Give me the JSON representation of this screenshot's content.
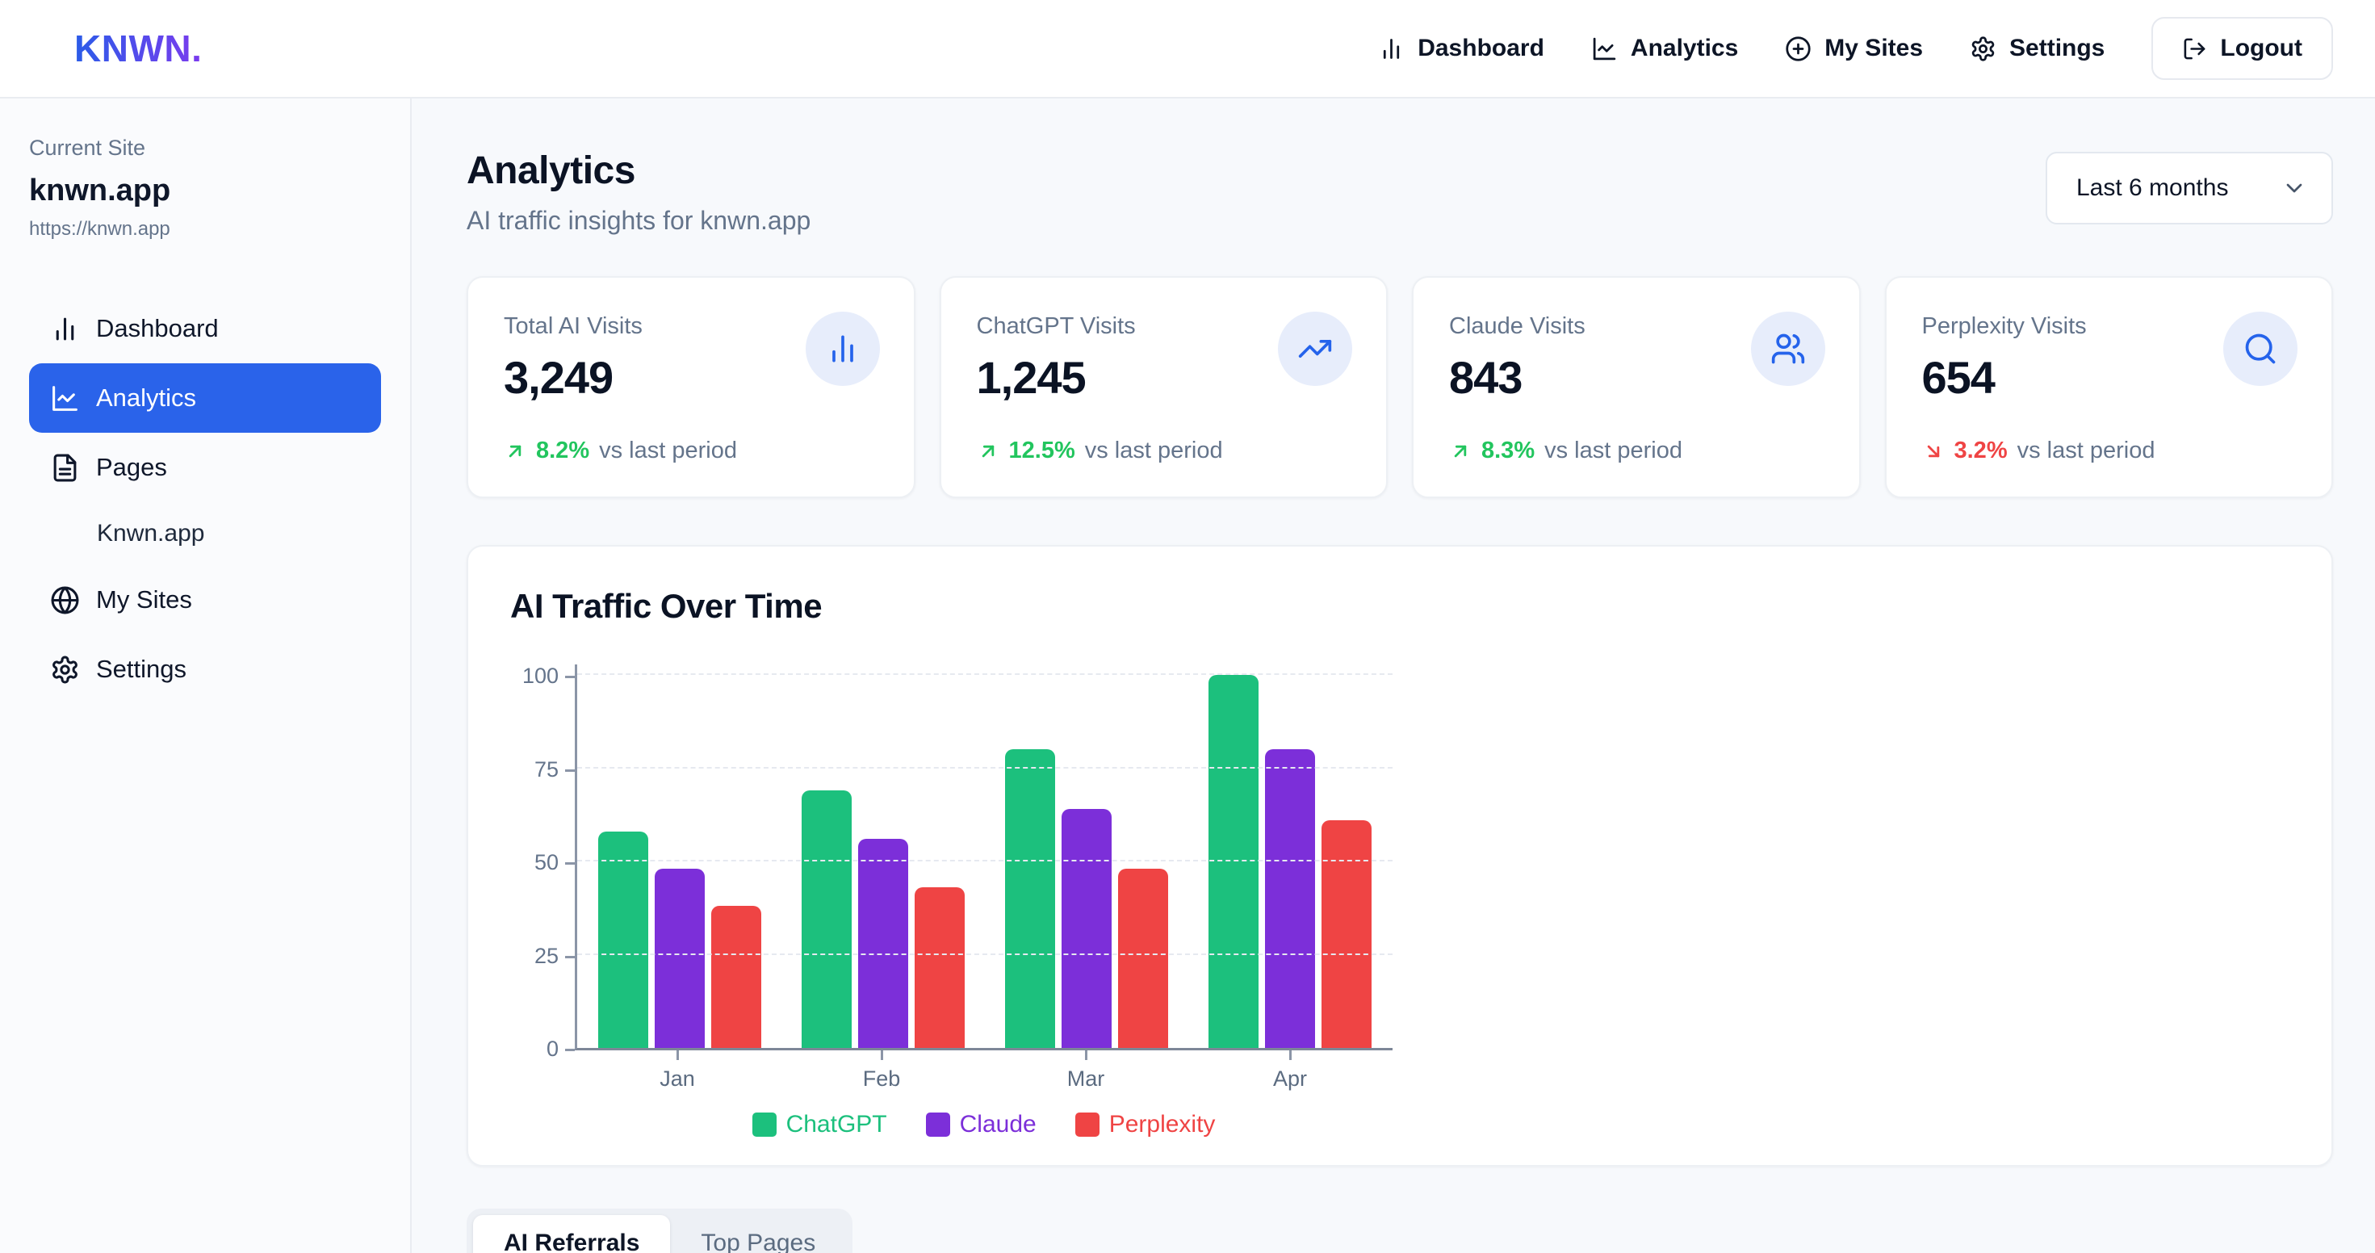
{
  "brand": {
    "logo": "KNWN."
  },
  "topnav": {
    "items": [
      {
        "label": "Dashboard",
        "icon": "bar-chart-icon"
      },
      {
        "label": "Analytics",
        "icon": "line-chart-icon"
      },
      {
        "label": "My Sites",
        "icon": "plus-circle-icon"
      },
      {
        "label": "Settings",
        "icon": "gear-icon"
      }
    ],
    "logout_label": "Logout"
  },
  "sidebar": {
    "current_site_label": "Current Site",
    "site_name": "knwn.app",
    "site_url": "https://knwn.app",
    "items": [
      {
        "label": "Dashboard",
        "icon": "bar-chart-icon",
        "active": false
      },
      {
        "label": "Analytics",
        "icon": "line-chart-icon",
        "active": true
      },
      {
        "label": "Pages",
        "icon": "file-text-icon",
        "active": false
      },
      {
        "label": "Knwn.app",
        "icon": null,
        "active": false,
        "sub_item": true
      },
      {
        "label": "My Sites",
        "icon": "globe-icon",
        "active": false
      },
      {
        "label": "Settings",
        "icon": "gear-icon",
        "active": false
      }
    ]
  },
  "header": {
    "title": "Analytics",
    "subtitle": "AI traffic insights for knwn.app",
    "range_selected": "Last 6 months"
  },
  "stats": [
    {
      "label": "Total AI Visits",
      "value": "3,249",
      "icon": "bar-chart-icon",
      "trend_direction": "up",
      "trend_value": "8.2%",
      "trend_text": "vs last period"
    },
    {
      "label": "ChatGPT Visits",
      "value": "1,245",
      "icon": "trending-up-icon",
      "trend_direction": "up",
      "trend_value": "12.5%",
      "trend_text": "vs last period"
    },
    {
      "label": "Claude Visits",
      "value": "843",
      "icon": "users-icon",
      "trend_direction": "up",
      "trend_value": "8.3%",
      "trend_text": "vs last period"
    },
    {
      "label": "Perplexity Visits",
      "value": "654",
      "icon": "search-icon",
      "trend_direction": "down",
      "trend_value": "3.2%",
      "trend_text": "vs last period"
    }
  ],
  "chart_data": {
    "type": "bar",
    "title": "AI Traffic Over Time",
    "categories": [
      "Jan",
      "Feb",
      "Mar",
      "Apr"
    ],
    "series": [
      {
        "name": "ChatGPT",
        "color": "#1cc07d",
        "values": [
          58,
          69,
          80,
          100
        ]
      },
      {
        "name": "Claude",
        "color": "#7c2fd9",
        "values": [
          48,
          56,
          64,
          80
        ]
      },
      {
        "name": "Perplexity",
        "color": "#ef4444",
        "values": [
          38,
          43,
          48,
          61
        ]
      }
    ],
    "xlabel": "",
    "ylabel": "",
    "ylim": [
      0,
      100
    ],
    "y_ticks": [
      0,
      25,
      50,
      75,
      100
    ],
    "grid": "dashed-horizontal",
    "legend_position": "bottom"
  },
  "tabs": [
    {
      "label": "AI Referrals",
      "active": true
    },
    {
      "label": "Top Pages",
      "active": false
    }
  ],
  "colors": {
    "accent_blue": "#2563eb",
    "sidebar_active_bg": "#2a63ea",
    "trend_up_green": "#22c55e",
    "trend_down_red": "#ef4444",
    "chatgpt_green": "#1cc07d",
    "claude_purple": "#7c2fd9",
    "perplexity_red": "#ef4444"
  }
}
